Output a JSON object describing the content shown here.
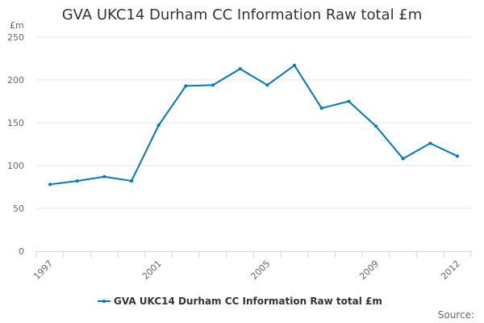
{
  "chart_data": {
    "type": "line",
    "title": "GVA UKC14 Durham CC Information Raw total £m",
    "ylabel": "£m",
    "xlabel": "",
    "x": [
      1997,
      1998,
      1999,
      2000,
      2001,
      2002,
      2003,
      2004,
      2005,
      2006,
      2007,
      2008,
      2009,
      2010,
      2011,
      2012
    ],
    "x_tick_labels": [
      "1997",
      "2001",
      "2005",
      "2009",
      "2012"
    ],
    "y_ticks": [
      0,
      50,
      100,
      150,
      200,
      250
    ],
    "ylim": [
      0,
      250
    ],
    "grid": true,
    "legend_position": "bottom",
    "series": [
      {
        "name": "GVA UKC14 Durham CC Information Raw total £m",
        "color": "#0077c0",
        "values": [
          78,
          82,
          87,
          82,
          147,
          193,
          194,
          213,
          194,
          217,
          167,
          175,
          146,
          108,
          126,
          111
        ]
      }
    ]
  },
  "source_label": "Source:"
}
